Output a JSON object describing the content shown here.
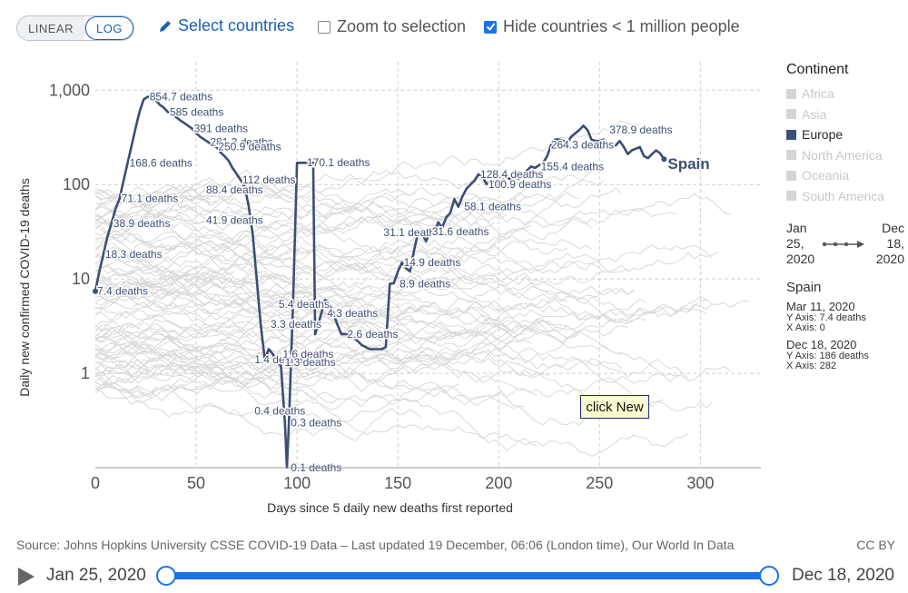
{
  "controls": {
    "scale_linear": "LINEAR",
    "scale_log": "LOG",
    "select_countries": "Select countries",
    "zoom_label": "Zoom to selection",
    "zoom_checked": false,
    "hide_label": "Hide countries < 1 million people",
    "hide_checked": true
  },
  "legend": {
    "title": "Continent",
    "items": [
      {
        "label": "Africa",
        "active": false
      },
      {
        "label": "Asia",
        "active": false
      },
      {
        "label": "Europe",
        "active": true
      },
      {
        "label": "North America",
        "active": false
      },
      {
        "label": "Oceania",
        "active": false
      },
      {
        "label": "South America",
        "active": false
      }
    ]
  },
  "range": {
    "start": "Jan\n25,\n2020",
    "end": "Dec\n18,\n2020"
  },
  "tooltip": {
    "name": "Spain",
    "p1_date": "Mar 11, 2020",
    "p1_y": "Y Axis: 7.4 deaths",
    "p1_x": "X Axis: 0",
    "p2_date": "Dec 18, 2020",
    "p2_y": "Y Axis: 186 deaths",
    "p2_x": "X Axis: 282"
  },
  "click_box": "click New",
  "source": "Source: Johns Hopkins University CSSE COVID-19 Data – Last updated 19 December, 06:06 (London time), Our World In Data",
  "license": "CC BY",
  "timeline": {
    "start": "Jan 25, 2020",
    "end": "Dec 18, 2020",
    "position": 1.0
  },
  "colors": {
    "highlight": "#3d4e73",
    "background_lines": "#d9d9d9",
    "accent": "#1a73e8"
  },
  "chart_data": {
    "type": "line",
    "scale": "log",
    "xlabel": "Days since 5 daily new deaths first reported",
    "ylabel": "Daily new confirmed COVID-19 deaths",
    "xlim": [
      0,
      330
    ],
    "ylim": [
      0.1,
      2000
    ],
    "x_ticks": [
      0,
      50,
      100,
      150,
      200,
      250,
      300
    ],
    "y_ticks": [
      {
        "v": 1,
        "label": "1"
      },
      {
        "v": 10,
        "label": "10"
      },
      {
        "v": 100,
        "label": "100"
      },
      {
        "v": 1000,
        "label": "1,000"
      }
    ],
    "grid": true,
    "series": [
      {
        "name": "Spain",
        "end_label": "Spain",
        "x": [
          0,
          2,
          4,
          6,
          8,
          10,
          12,
          14,
          16,
          18,
          20,
          22,
          24,
          26,
          28,
          30,
          32,
          34,
          36,
          38,
          40,
          42,
          44,
          46,
          48,
          50,
          52,
          54,
          56,
          58,
          60,
          62,
          64,
          66,
          68,
          70,
          72,
          74,
          76,
          78,
          80,
          82,
          84,
          86,
          88,
          90,
          92,
          94,
          95,
          96,
          98,
          100,
          102,
          104,
          106,
          108,
          109,
          110,
          112,
          114,
          116,
          118,
          120,
          122,
          124,
          126,
          128,
          130,
          132,
          134,
          136,
          138,
          140,
          142,
          144,
          146,
          148,
          150,
          152,
          154,
          156,
          158,
          160,
          162,
          164,
          166,
          168,
          170,
          172,
          174,
          176,
          178,
          180,
          182,
          184,
          186,
          188,
          190,
          192,
          194,
          196,
          198,
          200,
          202,
          204,
          206,
          208,
          210,
          212,
          214,
          216,
          218,
          220,
          222,
          224,
          226,
          228,
          230,
          232,
          234,
          236,
          238,
          240,
          242,
          244,
          246,
          248,
          250,
          252,
          254,
          256,
          258,
          260,
          262,
          264,
          266,
          268,
          270,
          272,
          274,
          276,
          278,
          280,
          282
        ],
        "y": [
          7.4,
          12,
          18.3,
          28,
          38.9,
          55,
          71.1,
          110,
          168.6,
          260,
          400,
          600,
          800,
          854.7,
          820,
          780,
          700,
          650,
          585,
          560,
          520,
          480,
          450,
          420,
          391,
          350,
          320,
          300,
          281.3,
          260,
          250.9,
          220,
          200,
          180,
          150,
          130,
          112,
          95,
          60,
          30,
          10,
          3.3,
          1.4,
          1.8,
          1.6,
          1.3,
          1.2,
          0.3,
          0.1,
          0.3,
          5.4,
          170,
          170,
          170.1,
          170,
          170,
          2.6,
          3,
          4.3,
          6,
          5.4,
          4.3,
          3.3,
          2.6,
          2.6,
          2.6,
          2.4,
          2.2,
          2,
          1.9,
          1.8,
          1.8,
          1.8,
          1.8,
          1.9,
          8.9,
          9,
          12,
          14.9,
          13,
          12,
          20,
          31.1,
          30,
          25,
          31.6,
          30,
          40,
          35,
          45,
          50,
          70,
          58.1,
          75,
          90,
          100,
          110,
          128.4,
          120,
          100.9,
          110,
          105,
          100,
          110,
          120,
          112,
          118,
          115,
          130,
          140,
          155.4,
          150,
          160,
          170,
          200,
          264.3,
          300,
          300,
          290,
          280,
          320,
          350,
          378.9,
          420,
          378.9,
          300,
          290,
          290,
          300,
          270,
          260,
          260,
          290,
          250,
          210,
          230,
          240,
          250,
          200,
          190,
          210,
          230,
          215,
          186
        ]
      }
    ],
    "annotations": [
      {
        "x": 0,
        "y": 7.4,
        "label": "7.4 deaths"
      },
      {
        "x": 4,
        "y": 18.3,
        "label": "18.3 deaths"
      },
      {
        "x": 8,
        "y": 38.9,
        "label": "38.9 deaths"
      },
      {
        "x": 12,
        "y": 71.1,
        "label": "71.1 deaths"
      },
      {
        "x": 16,
        "y": 168.6,
        "label": "168.6 deaths"
      },
      {
        "x": 26,
        "y": 854.7,
        "label": "854.7 deaths"
      },
      {
        "x": 36,
        "y": 585,
        "label": "585 deaths"
      },
      {
        "x": 56,
        "y": 281.3,
        "label": "281.3 deaths"
      },
      {
        "x": 48,
        "y": 391,
        "label": "391 deaths"
      },
      {
        "x": 60,
        "y": 250.9,
        "label": "250.9 deaths"
      },
      {
        "x": 54,
        "y": 88.4,
        "label": "88.4 deaths"
      },
      {
        "x": 54,
        "y": 41.9,
        "label": "41.9 deaths"
      },
      {
        "x": 72,
        "y": 112,
        "label": "112 deaths"
      },
      {
        "x": 104,
        "y": 170.1,
        "label": "170.1 deaths"
      },
      {
        "x": 90,
        "y": 5.4,
        "label": "5.4 deaths"
      },
      {
        "x": 86,
        "y": 3.3,
        "label": "3.3 deaths"
      },
      {
        "x": 78,
        "y": 1.4,
        "label": "1.4 deaths"
      },
      {
        "x": 92,
        "y": 1.6,
        "label": "1.6 deaths"
      },
      {
        "x": 93,
        "y": 1.3,
        "label": "1.3 deaths"
      },
      {
        "x": 78,
        "y": 0.4,
        "label": "0.4 deaths"
      },
      {
        "x": 96,
        "y": 0.3,
        "label": "0.3 deaths"
      },
      {
        "x": 96,
        "y": 0.1,
        "label": "0.1 deaths"
      },
      {
        "x": 114,
        "y": 4.3,
        "label": "4.3 deaths"
      },
      {
        "x": 124,
        "y": 2.6,
        "label": "2.6 deaths"
      },
      {
        "x": 150,
        "y": 8.9,
        "label": "8.9 deaths"
      },
      {
        "x": 152,
        "y": 14.9,
        "label": "14.9 deaths"
      },
      {
        "x": 142,
        "y": 31.1,
        "label": "31.1 deaths"
      },
      {
        "x": 166,
        "y": 31.6,
        "label": "31.6 deaths"
      },
      {
        "x": 182,
        "y": 58.1,
        "label": "58.1 deaths"
      },
      {
        "x": 194,
        "y": 100.9,
        "label": "100.9 deaths"
      },
      {
        "x": 190,
        "y": 128.4,
        "label": "128.4 deaths"
      },
      {
        "x": 225,
        "y": 264.3,
        "label": "264.3 deaths"
      },
      {
        "x": 220,
        "y": 155.4,
        "label": "155.4 deaths"
      },
      {
        "x": 254,
        "y": 378.9,
        "label": "378.9 deaths"
      }
    ]
  }
}
